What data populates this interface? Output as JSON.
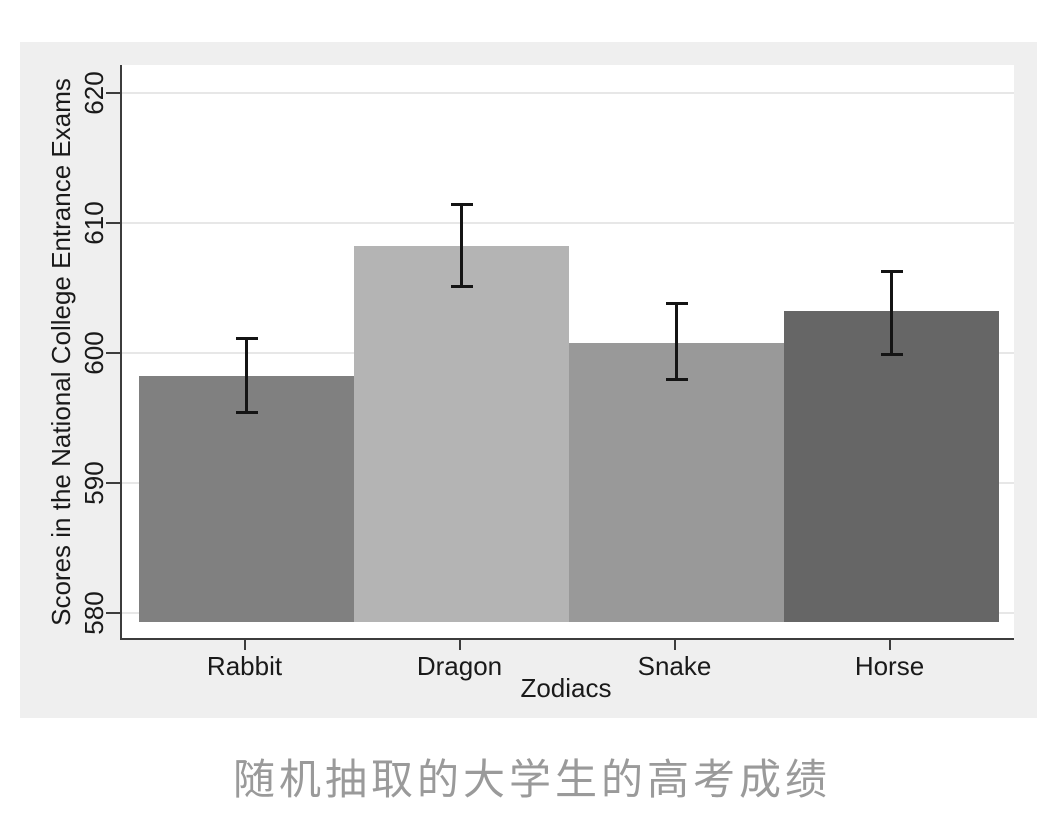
{
  "chart_data": {
    "type": "bar",
    "title": "",
    "xlabel": "Zodiacs",
    "ylabel": "Scores in the National College Entrance Exams",
    "categories": [
      "Rabbit",
      "Dragon",
      "Snake",
      "Horse"
    ],
    "values": [
      598.2,
      608.2,
      600.8,
      603.2
    ],
    "error_bars": {
      "low": [
        595.4,
        605.1,
        598.0,
        599.9
      ],
      "high": [
        601.1,
        611.4,
        603.8,
        606.3
      ]
    },
    "bar_colors": [
      "#808080",
      "#b4b4b4",
      "#999999",
      "#666666"
    ],
    "ylim": [
      580,
      620
    ],
    "yticks": [
      "580",
      "590",
      "600",
      "610",
      "620"
    ],
    "grid": true,
    "legend": "none"
  },
  "caption": {
    "text": "随机抽取的大学生的高考成绩"
  },
  "colors": {
    "panel_bg": "#efefef",
    "plot_bg": "#ffffff",
    "axis": "#3c3c3c",
    "grid": "#e7e7e7",
    "error_bar": "#141414",
    "caption_text": "#9a9a9a"
  }
}
